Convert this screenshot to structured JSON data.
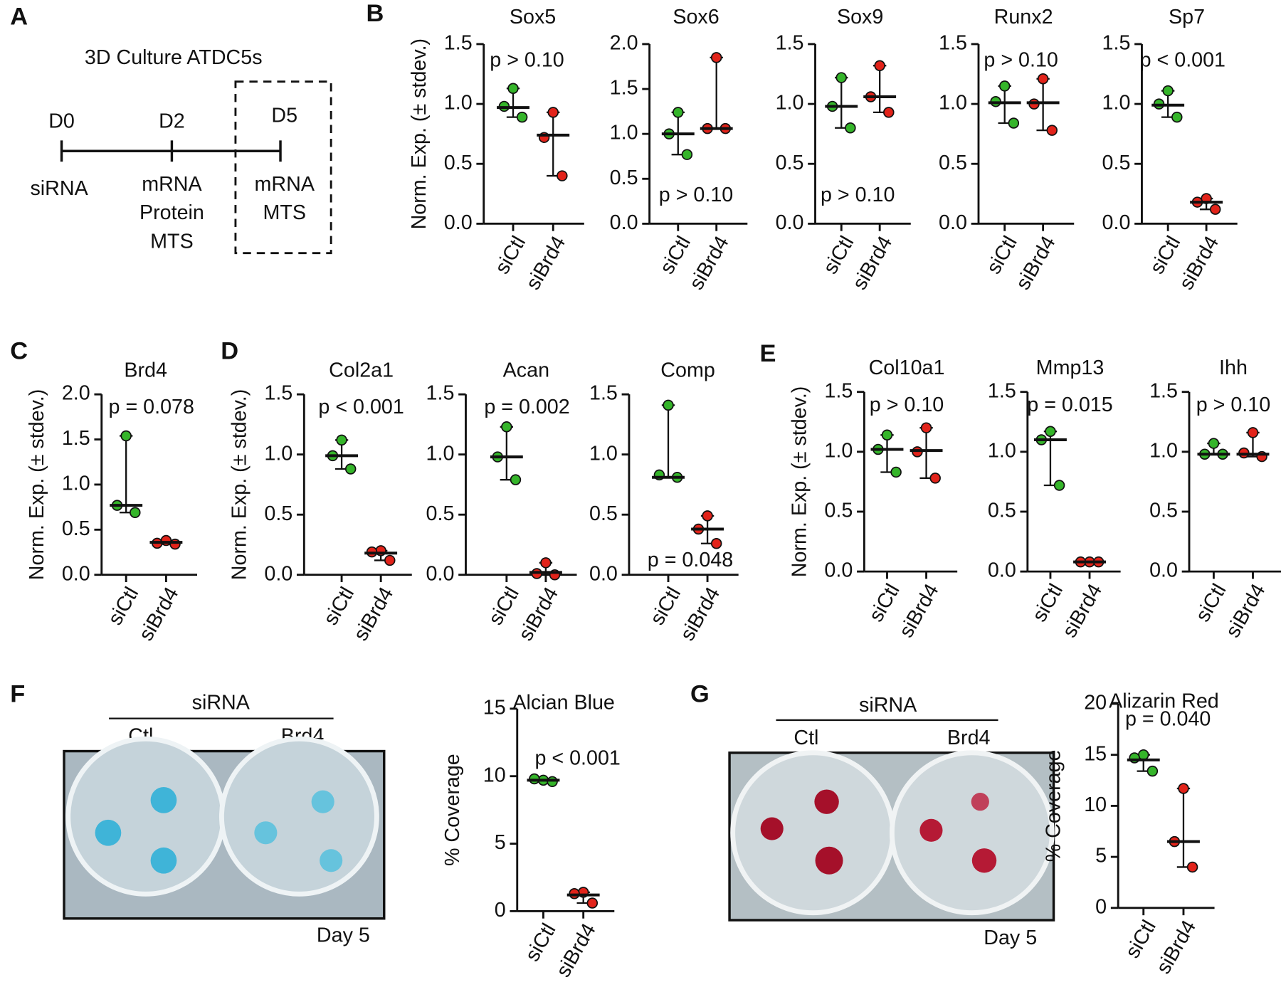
{
  "panels": [
    "A",
    "B",
    "C",
    "D",
    "E",
    "F",
    "G"
  ],
  "timeline": {
    "title": "3D Culture ATDC5s",
    "days": [
      "D0",
      "D2",
      "D5"
    ],
    "notes": [
      [
        "siRNA"
      ],
      [
        "mRNA",
        "Protein",
        "MTS"
      ],
      [
        "mRNA",
        "MTS"
      ]
    ]
  },
  "photos": [
    {
      "header": "siRNA",
      "groups": [
        "Ctl",
        "Brd4"
      ],
      "caption": "Day 5"
    },
    {
      "header": "siRNA",
      "groups": [
        "Ctl",
        "Brd4"
      ],
      "caption": "Day 5"
    }
  ],
  "chart_data": [
    {
      "type": "dotplot",
      "title": "Sox5",
      "ylabel": "Norm. Exp. (± stdev.)",
      "annotation": "p > 0.10",
      "categories": [
        "siCtl",
        "siBrd4"
      ],
      "colors": [
        "#35b52a",
        "#e2231a"
      ],
      "values": [
        [
          1.13,
          0.98,
          0.89
        ],
        [
          0.93,
          0.72,
          0.4
        ]
      ],
      "center": [
        0.97,
        0.74
      ],
      "ylim": [
        0,
        1.5
      ],
      "yticks": [
        {
          "value": 0,
          "label": "0.0"
        },
        {
          "value": 0.5,
          "label": "0.5"
        },
        {
          "value": 1,
          "label": "1.0"
        },
        {
          "value": 1.5,
          "label": "1.5"
        }
      ]
    },
    {
      "type": "dotplot",
      "title": "Sox6",
      "annotation": "p > 0.10",
      "categories": [
        "siCtl",
        "siBrd4"
      ],
      "colors": [
        "#35b52a",
        "#e2231a"
      ],
      "values": [
        [
          1.24,
          1.0,
          0.77
        ],
        [
          1.85,
          1.06,
          1.06
        ]
      ],
      "center": [
        1.0,
        1.06
      ],
      "ylim": [
        0,
        2
      ],
      "yticks": [
        {
          "value": 0,
          "label": "0.0"
        },
        {
          "value": 0.5,
          "label": "0.5"
        },
        {
          "value": 1,
          "label": "1.0"
        },
        {
          "value": 1.5,
          "label": "1.5"
        },
        {
          "value": 2,
          "label": "2.0"
        }
      ]
    },
    {
      "type": "dotplot",
      "title": "Sox9",
      "annotation": "p > 0.10",
      "categories": [
        "siCtl",
        "siBrd4"
      ],
      "colors": [
        "#35b52a",
        "#e2231a"
      ],
      "values": [
        [
          1.22,
          0.98,
          0.8
        ],
        [
          1.32,
          1.06,
          0.93
        ]
      ],
      "center": [
        0.98,
        1.06
      ],
      "ylim": [
        0,
        1.5
      ],
      "yticks": [
        {
          "value": 0,
          "label": "0.0"
        },
        {
          "value": 0.5,
          "label": "0.5"
        },
        {
          "value": 1,
          "label": "1.0"
        },
        {
          "value": 1.5,
          "label": "1.5"
        }
      ]
    },
    {
      "type": "dotplot",
      "title": "Runx2",
      "annotation": "p > 0.10",
      "categories": [
        "siCtl",
        "siBrd4"
      ],
      "colors": [
        "#35b52a",
        "#e2231a"
      ],
      "values": [
        [
          1.15,
          1.02,
          0.84
        ],
        [
          1.21,
          1.0,
          0.78
        ]
      ],
      "center": [
        1.01,
        1.01
      ],
      "ylim": [
        0,
        1.5
      ],
      "yticks": [
        {
          "value": 0,
          "label": "0.0"
        },
        {
          "value": 0.5,
          "label": "0.5"
        },
        {
          "value": 1,
          "label": "1.0"
        },
        {
          "value": 1.5,
          "label": "1.5"
        }
      ]
    },
    {
      "type": "dotplot",
      "title": "Sp7",
      "annotation": "p < 0.001",
      "categories": [
        "siCtl",
        "siBrd4"
      ],
      "colors": [
        "#35b52a",
        "#e2231a"
      ],
      "values": [
        [
          1.11,
          1.0,
          0.89
        ],
        [
          0.21,
          0.18,
          0.12
        ]
      ],
      "center": [
        0.99,
        0.18
      ],
      "ylim": [
        0,
        1.5
      ],
      "yticks": [
        {
          "value": 0,
          "label": "0.0"
        },
        {
          "value": 0.5,
          "label": "0.5"
        },
        {
          "value": 1,
          "label": "1.0"
        },
        {
          "value": 1.5,
          "label": "1.5"
        }
      ]
    },
    {
      "type": "dotplot",
      "title": "Brd4",
      "ylabel": "Norm. Exp. (± stdev.)",
      "annotation": "p = 0.078",
      "categories": [
        "siCtl",
        "siBrd4"
      ],
      "colors": [
        "#35b52a",
        "#e2231a"
      ],
      "values": [
        [
          1.54,
          0.77,
          0.69
        ],
        [
          0.38,
          0.35,
          0.34
        ]
      ],
      "center": [
        0.77,
        0.36
      ],
      "ylim": [
        0,
        2
      ],
      "yticks": [
        {
          "value": 0,
          "label": "0.0"
        },
        {
          "value": 0.5,
          "label": "0.5"
        },
        {
          "value": 1,
          "label": "1.0"
        },
        {
          "value": 1.5,
          "label": "1.5"
        },
        {
          "value": 2,
          "label": "2.0"
        }
      ]
    },
    {
      "type": "dotplot",
      "title": "Col2a1",
      "ylabel": "Norm. Exp. (± stdev.)",
      "annotation": "p < 0.001",
      "categories": [
        "siCtl",
        "siBrd4"
      ],
      "colors": [
        "#35b52a",
        "#e2231a"
      ],
      "values": [
        [
          1.12,
          0.99,
          0.88
        ],
        [
          0.2,
          0.19,
          0.12
        ]
      ],
      "center": [
        0.99,
        0.18
      ],
      "ylim": [
        0,
        1.5
      ],
      "yticks": [
        {
          "value": 0,
          "label": "0.0"
        },
        {
          "value": 0.5,
          "label": "0.5"
        },
        {
          "value": 1,
          "label": "1.0"
        },
        {
          "value": 1.5,
          "label": "1.5"
        }
      ]
    },
    {
      "type": "dotplot",
      "title": "Acan",
      "annotation": "p = 0.002",
      "categories": [
        "siCtl",
        "siBrd4"
      ],
      "colors": [
        "#35b52a",
        "#e2231a"
      ],
      "values": [
        [
          1.23,
          0.98,
          0.79
        ],
        [
          0.1,
          0.01,
          0.0
        ]
      ],
      "center": [
        0.98,
        0.02
      ],
      "ylim": [
        0,
        1.5
      ],
      "yticks": [
        {
          "value": 0,
          "label": "0.0"
        },
        {
          "value": 0.5,
          "label": "0.5"
        },
        {
          "value": 1,
          "label": "1.0"
        },
        {
          "value": 1.5,
          "label": "1.5"
        }
      ]
    },
    {
      "type": "dotplot",
      "title": "Comp",
      "annotation": "p = 0.048",
      "categories": [
        "siCtl",
        "siBrd4"
      ],
      "colors": [
        "#35b52a",
        "#e2231a"
      ],
      "values": [
        [
          1.41,
          0.83,
          0.81
        ],
        [
          0.49,
          0.38,
          0.26
        ]
      ],
      "center": [
        0.81,
        0.38
      ],
      "ylim": [
        0,
        1.5
      ],
      "yticks": [
        {
          "value": 0,
          "label": "0.0"
        },
        {
          "value": 0.5,
          "label": "0.5"
        },
        {
          "value": 1,
          "label": "1.0"
        },
        {
          "value": 1.5,
          "label": "1.5"
        }
      ]
    },
    {
      "type": "dotplot",
      "title": "Col10a1",
      "ylabel": "Norm. Exp. (± stdev.)",
      "annotation": "p > 0.10",
      "categories": [
        "siCtl",
        "siBrd4"
      ],
      "colors": [
        "#35b52a",
        "#e2231a"
      ],
      "values": [
        [
          1.14,
          1.02,
          0.83
        ],
        [
          1.2,
          1.0,
          0.78
        ]
      ],
      "center": [
        1.02,
        1.01
      ],
      "ylim": [
        0,
        1.5
      ],
      "yticks": [
        {
          "value": 0,
          "label": "0.0"
        },
        {
          "value": 0.5,
          "label": "0.5"
        },
        {
          "value": 1,
          "label": "1.0"
        },
        {
          "value": 1.5,
          "label": "1.5"
        }
      ]
    },
    {
      "type": "dotplot",
      "title": "Mmp13",
      "annotation": "p = 0.015",
      "categories": [
        "siCtl",
        "siBrd4"
      ],
      "colors": [
        "#35b52a",
        "#e2231a"
      ],
      "values": [
        [
          1.17,
          1.1,
          0.72
        ],
        [
          0.08,
          0.08,
          0.08
        ]
      ],
      "center": [
        1.1,
        0.08
      ],
      "ylim": [
        0,
        1.5
      ],
      "yticks": [
        {
          "value": 0,
          "label": "0.0"
        },
        {
          "value": 0.5,
          "label": "0.5"
        },
        {
          "value": 1,
          "label": "1.0"
        },
        {
          "value": 1.5,
          "label": "1.5"
        }
      ]
    },
    {
      "type": "dotplot",
      "title": "Ihh",
      "annotation": "p > 0.10",
      "categories": [
        "siCtl",
        "siBrd4"
      ],
      "colors": [
        "#35b52a",
        "#e2231a"
      ],
      "values": [
        [
          1.07,
          0.98,
          0.98
        ],
        [
          1.16,
          0.99,
          0.96
        ]
      ],
      "center": [
        0.98,
        0.98
      ],
      "ylim": [
        0,
        1.5
      ],
      "yticks": [
        {
          "value": 0,
          "label": "0.0"
        },
        {
          "value": 0.5,
          "label": "0.5"
        },
        {
          "value": 1,
          "label": "1.0"
        },
        {
          "value": 1.5,
          "label": "1.5"
        }
      ]
    },
    {
      "type": "dotplot",
      "title": "Alcian Blue",
      "ylabel": "% Coverage",
      "annotation": "p < 0.001",
      "categories": [
        "siCtl",
        "siBrd4"
      ],
      "colors": [
        "#35b52a",
        "#e2231a"
      ],
      "values": [
        [
          9.7,
          9.8,
          9.6
        ],
        [
          1.4,
          1.3,
          0.6
        ]
      ],
      "center": [
        9.7,
        1.2
      ],
      "ylim": [
        0,
        15
      ],
      "yticks": [
        0,
        5,
        10,
        15
      ]
    },
    {
      "type": "dotplot",
      "title": "Alizarin  Red",
      "ylabel": "% Coverage",
      "annotation": "p = 0.040",
      "categories": [
        "siCtl",
        "siBrd4"
      ],
      "colors": [
        "#35b52a",
        "#e2231a"
      ],
      "values": [
        [
          15.0,
          14.7,
          13.4
        ],
        [
          11.7,
          6.5,
          4.0
        ]
      ],
      "center": [
        14.5,
        6.5
      ],
      "ylim": [
        0,
        20
      ],
      "yticks": [
        0,
        5,
        10,
        15,
        20
      ]
    }
  ]
}
